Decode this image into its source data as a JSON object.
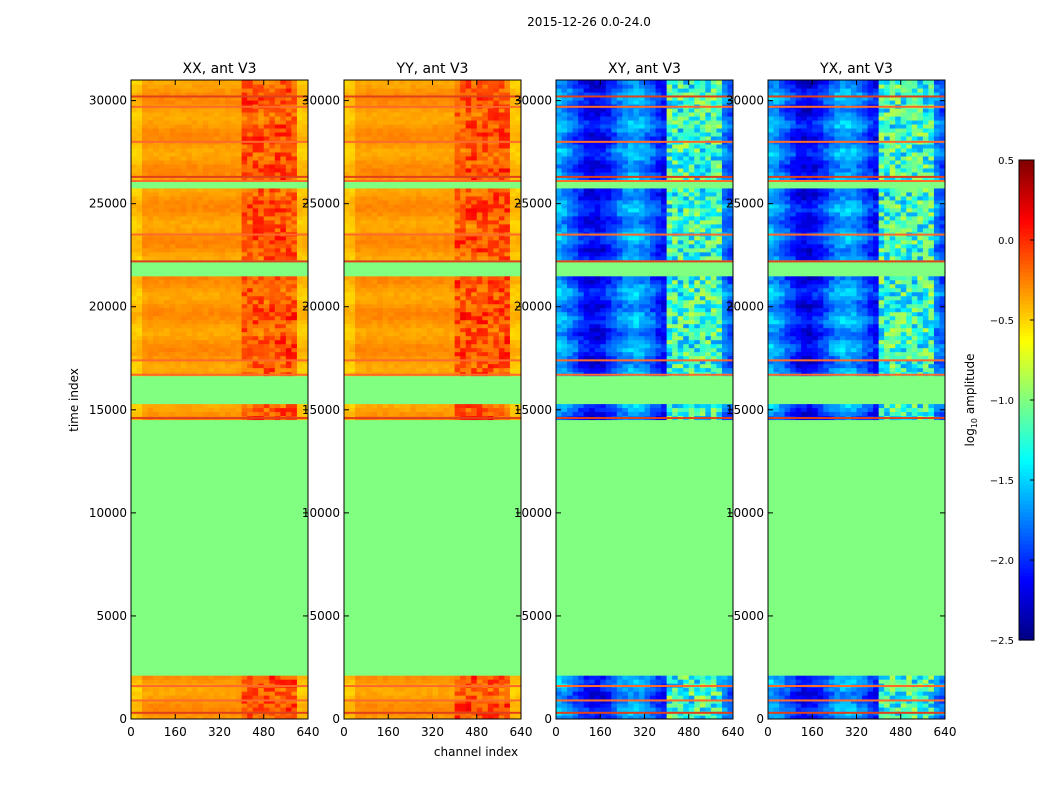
{
  "figure": {
    "suptitle": "2015-12-26 0.0-24.0"
  },
  "chart_data": {
    "type": "heatmap",
    "title": "2015-12-26 0.0-24.0",
    "xlabel": "channel index",
    "ylabel": "time index",
    "xlim": [
      0,
      640
    ],
    "ylim": [
      0,
      31000
    ],
    "x_ticks": [
      0,
      160,
      320,
      480,
      640
    ],
    "y_ticks": [
      0,
      5000,
      10000,
      15000,
      20000,
      25000,
      30000
    ],
    "panels": [
      {
        "name": "XX",
        "title": "XX, ant V3",
        "colorscale": "warm"
      },
      {
        "name": "YY",
        "title": "YY, ant V3",
        "colorscale": "warm"
      },
      {
        "name": "XY",
        "title": "XY, ant V3",
        "colorscale": "cool"
      },
      {
        "name": "YX",
        "title": "YX, ant V3",
        "colorscale": "cool"
      }
    ],
    "colorbar": {
      "label_prefix": "log",
      "label_sub": "10",
      "label_suffix": " amplitude",
      "range": [
        -2.5,
        0.5
      ],
      "ticks": [
        {
          "value": 0.5,
          "label": "0.5"
        },
        {
          "value": 0.0,
          "label": "0.0"
        },
        {
          "value": -0.5,
          "label": "−0.5"
        },
        {
          "value": -1.0,
          "label": "−1.0"
        },
        {
          "value": -1.5,
          "label": "−1.5"
        },
        {
          "value": -2.0,
          "label": "−2.0"
        },
        {
          "value": -2.5,
          "label": "−2.5"
        }
      ],
      "colormap": "jet"
    },
    "flagged_fill_value": -1.0,
    "time_segments": [
      {
        "t0": 0,
        "t1": 2200,
        "state": "data"
      },
      {
        "t0": 2200,
        "t1": 14500,
        "state": "flagged"
      },
      {
        "t0": 14500,
        "t1": 15400,
        "state": "data"
      },
      {
        "t0": 15400,
        "t1": 16700,
        "state": "flagged"
      },
      {
        "t0": 16700,
        "t1": 21500,
        "state": "data"
      },
      {
        "t0": 21500,
        "t1": 22200,
        "state": "flagged"
      },
      {
        "t0": 22200,
        "t1": 25700,
        "state": "data"
      },
      {
        "t0": 25700,
        "t1": 26100,
        "state": "flagged"
      },
      {
        "t0": 26100,
        "t1": 31000,
        "state": "data"
      }
    ],
    "rfi_channel_range": [
      400,
      600
    ],
    "rfi_time_lines": [
      300,
      900,
      1600,
      14600,
      16700,
      17400,
      22200,
      23500,
      26100,
      26300,
      28000,
      29700,
      30200
    ]
  }
}
